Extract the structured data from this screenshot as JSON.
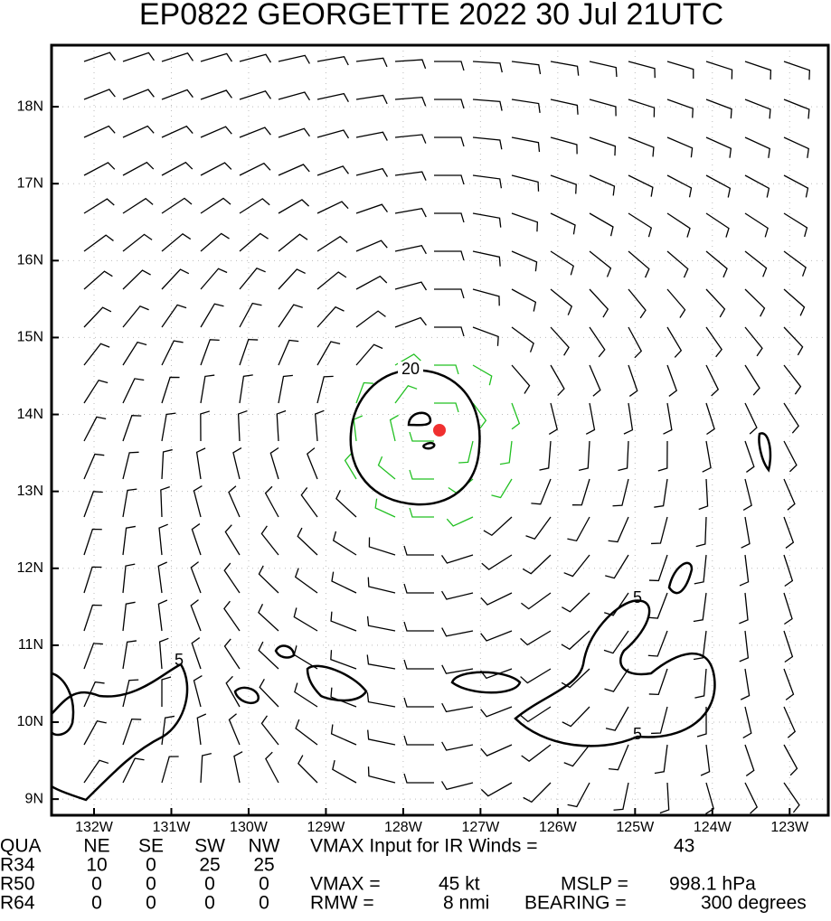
{
  "chart_data": {
    "type": "wind-field",
    "title": "EP0822  GEORGETTE 2022 30 Jul 21UTC",
    "xlim": [
      -132.55,
      -122.5
    ],
    "xticks": [
      {
        "value": -132,
        "label": "132W"
      },
      {
        "value": -131,
        "label": "131W"
      },
      {
        "value": -130,
        "label": "130W"
      },
      {
        "value": -129,
        "label": "129W"
      },
      {
        "value": -128,
        "label": "128W"
      },
      {
        "value": -127,
        "label": "127W"
      },
      {
        "value": -126,
        "label": "126W"
      },
      {
        "value": -125,
        "label": "125W"
      },
      {
        "value": -124,
        "label": "124W"
      },
      {
        "value": -123,
        "label": "123W"
      }
    ],
    "ylim": [
      8.79,
      18.8
    ],
    "yticks": [
      {
        "value": 9,
        "label": "9N"
      },
      {
        "value": 10,
        "label": "10N"
      },
      {
        "value": 11,
        "label": "11N"
      },
      {
        "value": 12,
        "label": "12N"
      },
      {
        "value": 13,
        "label": "13N"
      },
      {
        "value": 14,
        "label": "14N"
      },
      {
        "value": 15,
        "label": "15N"
      },
      {
        "value": 16,
        "label": "16N"
      },
      {
        "value": 17,
        "label": "17N"
      },
      {
        "value": 18,
        "label": "18N"
      }
    ],
    "grid": true,
    "contour_labels": [
      "20",
      "5",
      "5",
      "5"
    ]
  },
  "info": {
    "header": [
      "QUA",
      "NE",
      "SE",
      "SW",
      "NW"
    ],
    "rows": [
      [
        "R34",
        "10",
        "0",
        "25",
        "25"
      ],
      [
        "R50",
        "0",
        "0",
        "0",
        "0"
      ],
      [
        "R64",
        "0",
        "0",
        "0",
        "0"
      ]
    ],
    "notes": [
      [
        "VMAX Input for IR Winds =",
        "43"
      ],
      [],
      [
        "VMAX =",
        "45 kt",
        "MSLP =",
        "998.1 hPa"
      ],
      [
        "RMW =",
        "8 nmi",
        "BEARING =",
        "300 degrees"
      ]
    ]
  }
}
